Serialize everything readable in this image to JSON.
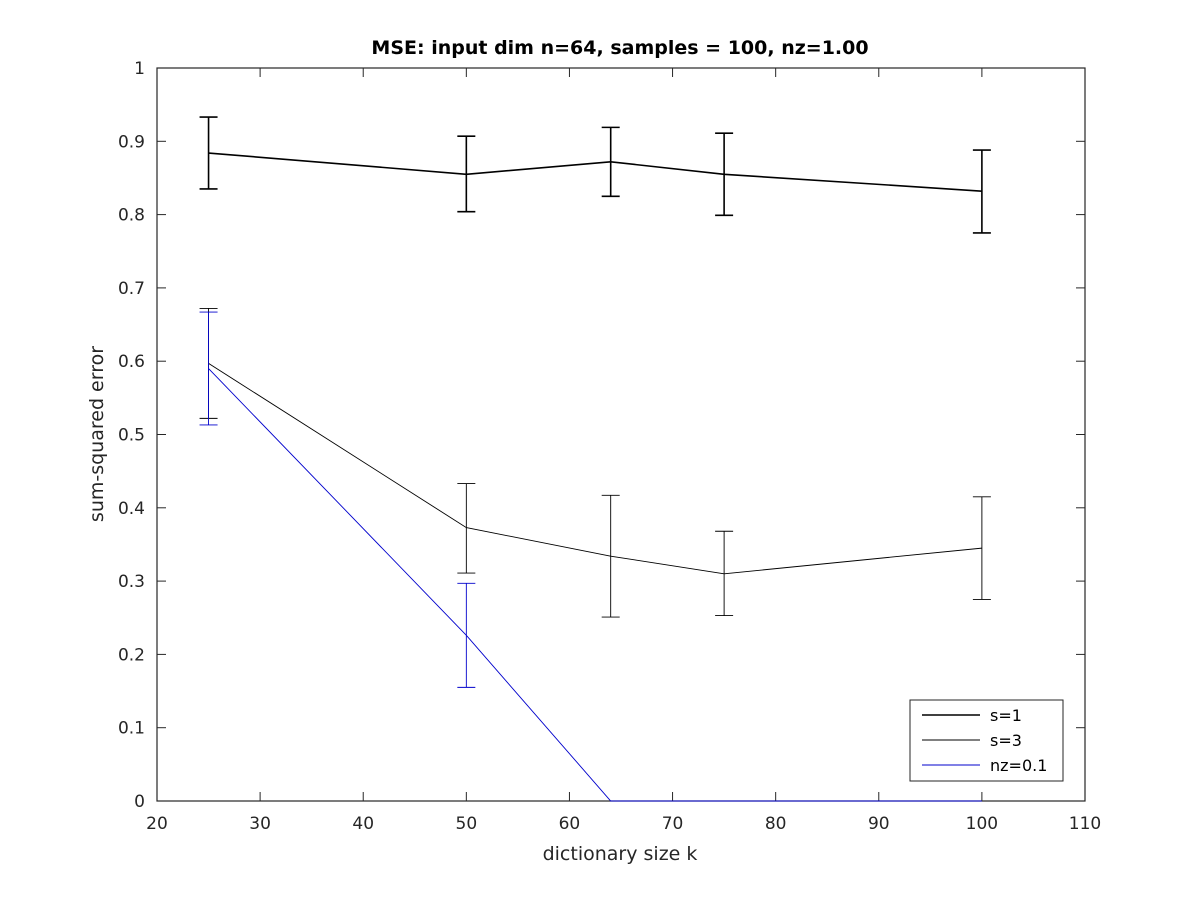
{
  "chart_data": {
    "type": "line",
    "title": "MSE: input dim n=64, samples = 100, nz=1.00",
    "xlabel": "dictionary size k",
    "ylabel": "sum-squared error",
    "xlim": [
      20,
      110
    ],
    "ylim": [
      0,
      1
    ],
    "x_ticks": [
      "20",
      "30",
      "40",
      "50",
      "60",
      "70",
      "80",
      "90",
      "100",
      "110"
    ],
    "y_ticks": [
      "0",
      "0.1",
      "0.2",
      "0.3",
      "0.4",
      "0.5",
      "0.6",
      "0.7",
      "0.8",
      "0.9",
      "1"
    ],
    "grid": false,
    "legend_position": "bottom-right",
    "series": [
      {
        "name": "s=1",
        "color": "#000000",
        "line": "thick",
        "x": [
          25,
          50,
          64,
          75,
          100
        ],
        "y": [
          0.884,
          0.855,
          0.872,
          0.855,
          0.832
        ],
        "err_low": [
          0.835,
          0.804,
          0.825,
          0.799,
          0.775
        ],
        "err_high": [
          0.933,
          0.907,
          0.919,
          0.911,
          0.888
        ]
      },
      {
        "name": "s=3",
        "color": "#000000",
        "line": "thin",
        "x": [
          25,
          50,
          64,
          75,
          100
        ],
        "y": [
          0.597,
          0.373,
          0.334,
          0.31,
          0.345
        ],
        "err_low": [
          0.522,
          0.311,
          0.251,
          0.253,
          0.275
        ],
        "err_high": [
          0.672,
          0.433,
          0.417,
          0.368,
          0.415
        ]
      },
      {
        "name": "nz=0.1",
        "color": "#0000cc",
        "line": "thin",
        "x": [
          25,
          50,
          64,
          75,
          100
        ],
        "y": [
          0.59,
          0.226,
          0.0,
          0.0,
          0.0
        ],
        "err_low": [
          0.513,
          0.155,
          null,
          null,
          null
        ],
        "err_high": [
          0.667,
          0.297,
          null,
          null,
          null
        ]
      }
    ]
  }
}
